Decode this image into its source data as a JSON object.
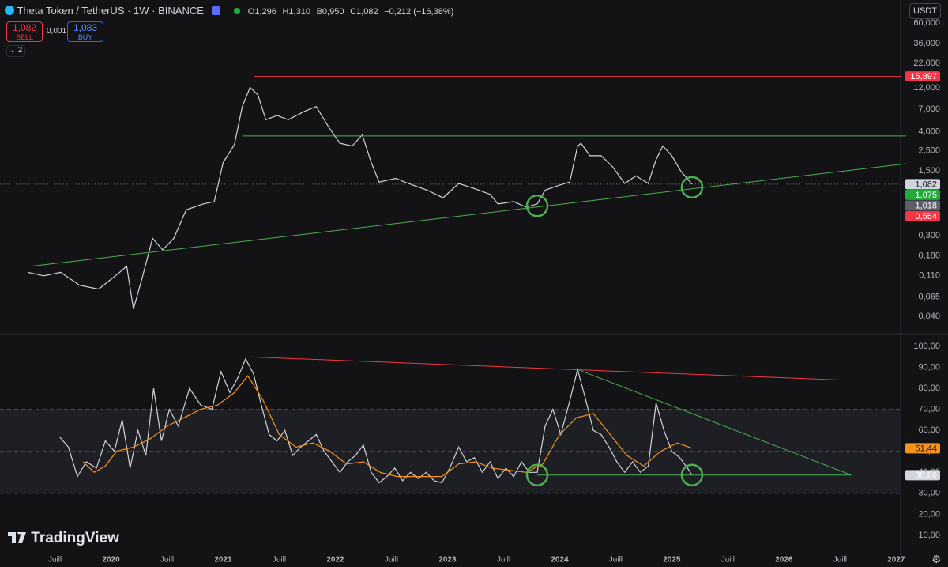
{
  "header": {
    "title": "Theta Token / TetherUS · 1W · BINANCE",
    "ohlc": [
      "O1,296",
      "H1,310",
      "B0,950",
      "C1,082",
      "−0,212 (−16,38%)"
    ],
    "sell_price": "1,082",
    "sell": "SELL",
    "spread": "0,001",
    "buy_price": "1,083",
    "buy": "BUY",
    "indicators": "2",
    "currency": "USDT",
    "logo": "TradingView"
  },
  "chart_data": [
    {
      "type": "line",
      "log_scale": true,
      "grid": false,
      "xlim": [
        2019.01,
        2027.04
      ],
      "ylim": [
        0.027,
        72
      ],
      "yticks": [
        {
          "value": 60,
          "label": "60,000"
        },
        {
          "value": 36,
          "label": "36,000"
        },
        {
          "value": 22,
          "label": "22,000"
        },
        {
          "value": 12,
          "label": "12,000"
        },
        {
          "value": 7,
          "label": "7,000"
        },
        {
          "value": 4,
          "label": "4,000"
        },
        {
          "value": 2.5,
          "label": "2,500"
        },
        {
          "value": 1.5,
          "label": "1,500"
        },
        {
          "value": 0.3,
          "label": "0,300"
        },
        {
          "value": 0.18,
          "label": "0,180"
        },
        {
          "value": 0.11,
          "label": "0,110"
        },
        {
          "value": 0.065,
          "label": "0,065"
        },
        {
          "value": 0.04,
          "label": "0,040"
        }
      ],
      "series": [
        {
          "color": "#d1d4dc",
          "x": [
            2019.26,
            2019.4,
            2019.55,
            2019.72,
            2019.89,
            2020.07,
            2020.14,
            2020.2,
            2020.28,
            2020.37,
            2020.46,
            2020.56,
            2020.67,
            2020.82,
            2020.92,
            2021.0,
            2021.1,
            2021.17,
            2021.24,
            2021.31,
            2021.38,
            2021.48,
            2021.58,
            2021.73,
            2021.83,
            2021.94,
            2022.04,
            2022.15,
            2022.24,
            2022.32,
            2022.39,
            2022.54,
            2022.65,
            2022.82,
            2022.96,
            2023.1,
            2023.24,
            2023.38,
            2023.45,
            2023.59,
            2023.7,
            2023.8,
            2023.87,
            2023.98,
            2024.09,
            2024.16,
            2024.19,
            2024.27,
            2024.37,
            2024.47,
            2024.58,
            2024.68,
            2024.79,
            2024.86,
            2024.92,
            2025.0,
            2025.08,
            2025.18
          ],
          "values": [
            0.12,
            0.11,
            0.12,
            0.087,
            0.079,
            0.118,
            0.14,
            0.048,
            0.107,
            0.28,
            0.21,
            0.28,
            0.57,
            0.66,
            0.7,
            1.86,
            2.9,
            7.5,
            12.1,
            10,
            5.4,
            6,
            5.4,
            6.7,
            7.5,
            4.5,
            3,
            2.8,
            3.7,
            1.86,
            1.14,
            1.25,
            1.1,
            0.93,
            0.77,
            1.1,
            0.97,
            0.84,
            0.66,
            0.7,
            0.61,
            0.66,
            0.93,
            1.04,
            1.14,
            2.8,
            3,
            2.2,
            2.2,
            1.68,
            1.1,
            1.33,
            1.1,
            2,
            2.8,
            2.2,
            1.5,
            1.082
          ]
        }
      ],
      "lines": [
        {
          "color": "#f23645",
          "x": [
            2021.27,
            2027.04
          ],
          "values": [
            15.897,
            15.897
          ]
        },
        {
          "color": "#4caf50",
          "x": [
            2021.17,
            2027.09
          ],
          "values": [
            3.6,
            3.6
          ]
        },
        {
          "color": "#4caf50",
          "x": [
            2019.3,
            2027.09
          ],
          "values": [
            0.14,
            1.8
          ]
        }
      ],
      "circles": [
        {
          "color": "#4caf50",
          "x": 2023.8,
          "value": 0.63
        },
        {
          "color": "#4caf50",
          "x": 2025.18,
          "value": 1.0
        }
      ],
      "price_labels": [
        {
          "value": 15.897,
          "label": "15,897",
          "color": "#f23645"
        },
        {
          "value": 1.082,
          "label": "1,082",
          "color": "#d1d4dc",
          "dotted": true
        },
        {
          "value": 1.075,
          "label": "1,075",
          "color": "#22ab3a"
        },
        {
          "value": 1.018,
          "label": "1,018",
          "color": "#5d606b"
        },
        {
          "value": 0.554,
          "label": "0,554",
          "color": "#f23645"
        }
      ]
    },
    {
      "type": "line",
      "log_scale": false,
      "grid": false,
      "xlim": [
        2019.01,
        2027.04
      ],
      "ylim": [
        1.3,
        104.9
      ],
      "xticks": [
        {
          "value": 2019.5,
          "label": "Juill"
        },
        2020,
        {
          "value": 2020.5,
          "label": "Juill"
        },
        2021,
        {
          "value": 2021.5,
          "label": "Juill"
        },
        2022,
        {
          "value": 2022.5,
          "label": "Juill"
        },
        2023,
        {
          "value": 2023.5,
          "label": "Juill"
        },
        2024,
        {
          "value": 2024.5,
          "label": "Juill"
        },
        2025,
        {
          "value": 2025.5,
          "label": "Juill"
        },
        2026,
        {
          "value": 2026.5,
          "label": "Juill"
        },
        2027
      ],
      "yticks": [
        {
          "value": 100,
          "label": "100,00"
        },
        {
          "value": 90,
          "label": "90,00"
        },
        {
          "value": 80,
          "label": "80,00"
        },
        {
          "value": 70,
          "label": "70,00"
        },
        {
          "value": 60,
          "label": "60,00"
        },
        {
          "value": 50,
          "label": "50,00"
        },
        {
          "value": 40,
          "label": "40,00"
        },
        {
          "value": 30,
          "label": "30,00"
        },
        {
          "value": 20,
          "label": "20,00"
        },
        {
          "value": 10,
          "label": "10,00"
        }
      ],
      "levels": [
        70,
        50,
        30
      ],
      "series": [
        {
          "color": "#d1d4dc",
          "x": [
            2019.54,
            2019.62,
            2019.7,
            2019.78,
            2019.87,
            2019.95,
            2020.03,
            2020.1,
            2020.17,
            2020.24,
            2020.31,
            2020.38,
            2020.45,
            2020.52,
            2020.6,
            2020.7,
            2020.8,
            2020.9,
            2020.98,
            2021.06,
            2021.13,
            2021.2,
            2021.27,
            2021.34,
            2021.41,
            2021.48,
            2021.55,
            2021.62,
            2021.69,
            2021.76,
            2021.83,
            2021.9,
            2021.97,
            2022.04,
            2022.11,
            2022.18,
            2022.25,
            2022.32,
            2022.39,
            2022.46,
            2022.53,
            2022.6,
            2022.67,
            2022.74,
            2022.81,
            2022.88,
            2022.95,
            2023.02,
            2023.1,
            2023.17,
            2023.24,
            2023.31,
            2023.38,
            2023.45,
            2023.52,
            2023.59,
            2023.66,
            2023.73,
            2023.8,
            2023.87,
            2023.94,
            2024.01,
            2024.08,
            2024.16,
            2024.23,
            2024.3,
            2024.37,
            2024.44,
            2024.51,
            2024.58,
            2024.65,
            2024.72,
            2024.79,
            2024.86,
            2024.93,
            2025.0,
            2025.07,
            2025.14,
            2025.18
          ],
          "values": [
            57,
            52,
            38,
            45,
            42,
            55,
            50,
            65,
            42,
            60,
            48,
            80,
            55,
            70,
            62,
            80,
            72,
            70,
            88,
            78,
            85,
            94,
            87,
            72,
            58,
            55,
            60,
            48,
            52,
            55,
            58,
            50,
            45,
            40,
            45,
            48,
            53,
            40,
            35,
            38,
            42,
            36,
            40,
            37,
            40,
            36,
            35,
            42,
            52,
            45,
            47,
            40,
            45,
            37,
            42,
            38,
            45,
            40,
            40,
            62,
            70,
            58,
            72,
            89,
            75,
            60,
            58,
            52,
            45,
            40,
            45,
            40,
            43,
            73,
            60,
            50,
            47,
            42,
            38.66
          ]
        },
        {
          "color": "#f7931a",
          "x": [
            2019.75,
            2019.85,
            2019.95,
            2020.05,
            2020.2,
            2020.35,
            2020.5,
            2020.65,
            2020.8,
            2020.95,
            2021.1,
            2021.22,
            2021.35,
            2021.5,
            2021.65,
            2021.8,
            2021.95,
            2022.1,
            2022.25,
            2022.4,
            2022.55,
            2022.7,
            2022.85,
            2022.95,
            2023.1,
            2023.25,
            2023.4,
            2023.55,
            2023.7,
            2023.85,
            2024.0,
            2024.15,
            2024.3,
            2024.45,
            2024.6,
            2024.75,
            2024.9,
            2025.05,
            2025.18
          ],
          "values": [
            45,
            40,
            43,
            50,
            52,
            56,
            62,
            66,
            70,
            72,
            78,
            86,
            75,
            58,
            52,
            54,
            50,
            44,
            45,
            40,
            38,
            38,
            38,
            38,
            44,
            45,
            42,
            41,
            40,
            44,
            58,
            66,
            68,
            58,
            48,
            43,
            50,
            54,
            51.44
          ]
        }
      ],
      "lines": [
        {
          "color": "#f23645",
          "x": [
            2021.24,
            2026.5
          ],
          "values": [
            95,
            84
          ]
        },
        {
          "color": "#4caf50",
          "x": [
            2024.16,
            2026.6
          ],
          "values": [
            89,
            38.7
          ]
        },
        {
          "color": "#4caf50",
          "x": [
            2023.8,
            2026.6
          ],
          "values": [
            38.7,
            38.7
          ]
        }
      ],
      "circles": [
        {
          "color": "#4caf50",
          "x": 2023.8,
          "value": 38.7
        },
        {
          "color": "#4caf50",
          "x": 2025.18,
          "value": 38.7
        }
      ],
      "price_labels": [
        {
          "value": 51.44,
          "label": "51,44",
          "color": "#f7931a"
        },
        {
          "value": 38.66,
          "label": "38,66",
          "color": "#d1d4dc"
        }
      ]
    }
  ]
}
